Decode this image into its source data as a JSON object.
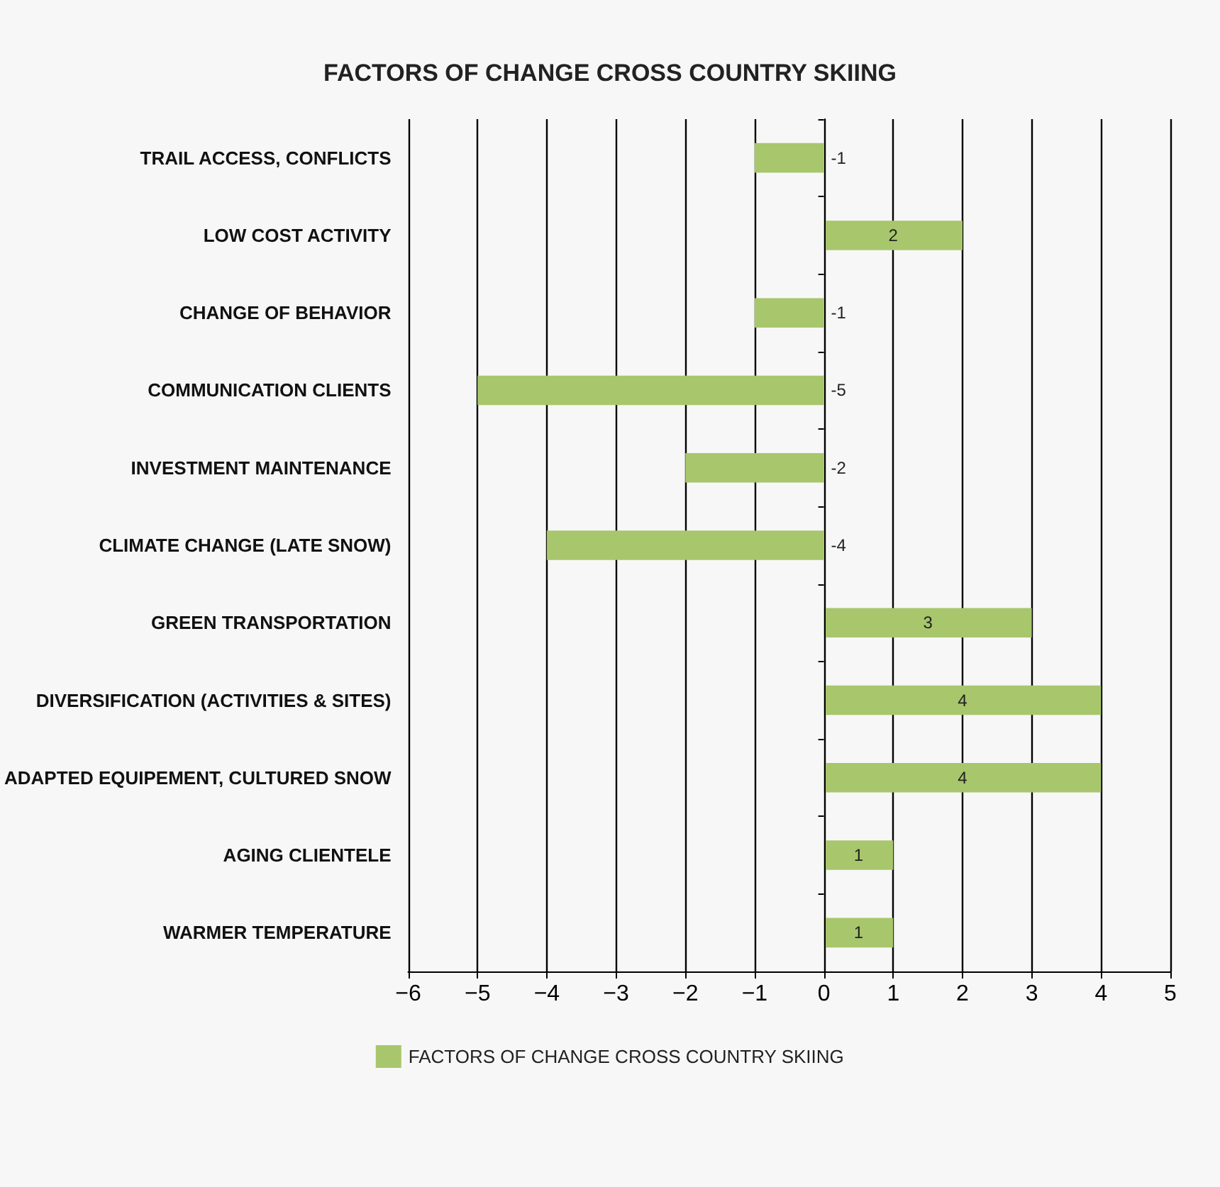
{
  "chart_data": {
    "type": "bar",
    "orientation": "horizontal",
    "title": "FACTORS OF CHANGE CROSS COUNTRY SKIING",
    "categories": [
      "TRAIL ACCESS, CONFLICTS",
      "LOW COST ACTIVITY",
      "CHANGE OF BEHAVIOR",
      "COMMUNICATION CLIENTS",
      "INVESTMENT MAINTENANCE",
      "CLIMATE CHANGE (LATE SNOW)",
      "GREEN TRANSPORTATION",
      "DIVERSIFICATION (ACTIVITIES & SITES)",
      "ADAPTED EQUIPEMENT, CULTURED SNOW",
      "AGING CLIENTELE",
      "WARMER TEMPERATURE"
    ],
    "series": [
      {
        "name": "FACTORS OF CHANGE CROSS COUNTRY SKIING",
        "color": "#a8c66c",
        "values": [
          -1,
          2,
          -1,
          -5,
          -2,
          -4,
          3,
          4,
          4,
          1,
          1
        ]
      }
    ],
    "xlim": [
      -6,
      5
    ],
    "xticks": [
      -6,
      -5,
      -4,
      -3,
      -2,
      -1,
      0,
      1,
      2,
      3,
      4,
      5
    ],
    "grid": "x",
    "legend": "bottom",
    "data_labels": true
  }
}
